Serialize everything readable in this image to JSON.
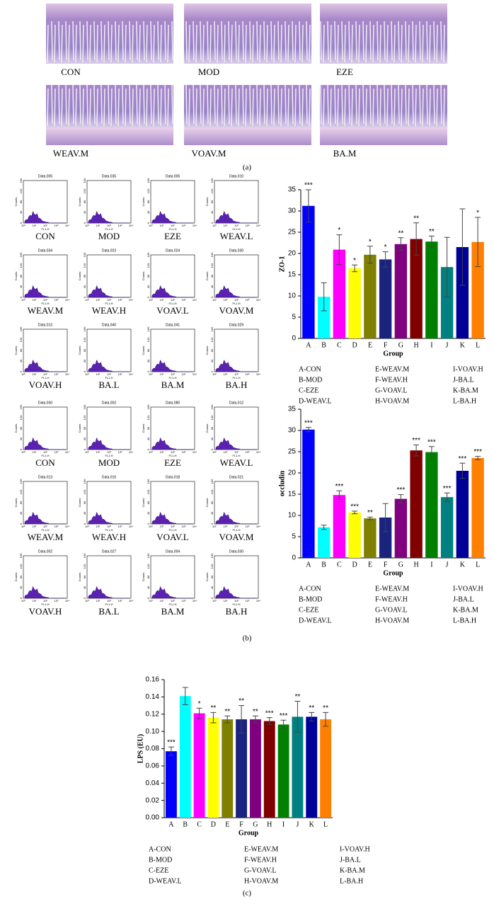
{
  "histology": {
    "labels": [
      "CON",
      "MOD",
      "EZE",
      "WEAV.M",
      "VOAV.M",
      "BA.M"
    ],
    "caption": "(a)"
  },
  "flow": {
    "y_label": "Counts",
    "x_label": "FL1-H",
    "yticks": [
      "0",
      "40",
      "80",
      "120",
      "160"
    ],
    "xticks": [
      "10⁰",
      "10¹",
      "10²",
      "10³",
      "10⁴"
    ],
    "sets": [
      {
        "panels": [
          {
            "id": "Data.005",
            "label": "CON"
          },
          {
            "id": "Data.035",
            "label": "MOD"
          },
          {
            "id": "Data.006",
            "label": "EZE"
          },
          {
            "id": "Data.010",
            "label": "WEAV.L"
          },
          {
            "id": "Data.034",
            "label": "WEAV.M"
          },
          {
            "id": "Data.023",
            "label": "WEAV.H"
          },
          {
            "id": "Data.024",
            "label": "VOAV.L"
          },
          {
            "id": "Data.030",
            "label": "VOAV.M"
          },
          {
            "id": "Data.013",
            "label": "VOAV.H"
          },
          {
            "id": "Data.040",
            "label": "BA.L"
          },
          {
            "id": "Data.041",
            "label": "BA.M"
          },
          {
            "id": "Data.029",
            "label": "BA.H"
          }
        ]
      },
      {
        "panels": [
          {
            "id": "Data.030",
            "label": "CON"
          },
          {
            "id": "Data.002",
            "label": "MOD"
          },
          {
            "id": "Data.080",
            "label": "EZE"
          },
          {
            "id": "Data.012",
            "label": "WEAV.L"
          },
          {
            "id": "Data.013",
            "label": "WEAV.M"
          },
          {
            "id": "Data.010",
            "label": "WEAV.H"
          },
          {
            "id": "Data.018",
            "label": "VOAV.L"
          },
          {
            "id": "Data.021",
            "label": "VOAV.M"
          },
          {
            "id": "Data.002",
            "label": "VOAV.H"
          },
          {
            "id": "Data.027",
            "label": "BA.L"
          },
          {
            "id": "Data.004",
            "label": "BA.M"
          },
          {
            "id": "Data.030",
            "label": "BA.H"
          }
        ]
      }
    ],
    "caption": "(b)"
  },
  "chart_data": [
    {
      "type": "bar",
      "y_label": "ZO-1",
      "x_label": "Group",
      "categories": [
        "A",
        "B",
        "C",
        "D",
        "E",
        "F",
        "G",
        "H",
        "I",
        "J",
        "K",
        "L"
      ],
      "values": [
        31.2,
        9.8,
        20.9,
        16.5,
        19.7,
        18.6,
        22.2,
        23.4,
        22.8,
        16.8,
        21.5,
        22.7
      ],
      "errors": [
        3.8,
        3.3,
        3.5,
        0.8,
        2,
        1.8,
        1.5,
        3.8,
        1.3,
        7,
        9,
        5.8
      ],
      "annotations": [
        "***",
        null,
        "*",
        "*",
        "*",
        "*",
        "**",
        "**",
        "**",
        null,
        null,
        "*"
      ],
      "colors": [
        "#0000ff",
        "#00ffff",
        "#ff00ff",
        "#ffff00",
        "#808000",
        "#1a237e",
        "#800080",
        "#800000",
        "#008000",
        "#008080",
        "#000099",
        "#ff8000"
      ],
      "ylim": [
        0,
        35
      ],
      "yticks": [
        0,
        5,
        10,
        15,
        20,
        25,
        30,
        35
      ],
      "key": [
        "A-CON",
        "B-MOD",
        "C-EZE",
        "D-WEAV.L",
        "E-WEAV.M",
        "F-WEAV.H",
        "G-VOAV.L",
        "H-VOAV.M",
        "I-VOAV.H",
        "J-BA.L",
        "K-BA.M",
        "L-BA.H"
      ]
    },
    {
      "type": "bar",
      "y_label": "occludin",
      "x_label": "Group",
      "categories": [
        "A",
        "B",
        "C",
        "D",
        "E",
        "F",
        "G",
        "H",
        "I",
        "J",
        "K",
        "L"
      ],
      "values": [
        30.2,
        7.2,
        14.8,
        10.7,
        9.3,
        9.5,
        13.9,
        25.3,
        24.9,
        14.3,
        20.5,
        23.5
      ],
      "errors": [
        0.5,
        0.5,
        1,
        0.3,
        0.3,
        3.3,
        1,
        1.3,
        1.3,
        1,
        1.8,
        0.4
      ],
      "annotations": [
        "***",
        null,
        "***",
        "***",
        "**",
        null,
        "***",
        "***",
        "***",
        "***",
        "***",
        "***"
      ],
      "colors": [
        "#0000ff",
        "#00ffff",
        "#ff00ff",
        "#ffff00",
        "#808000",
        "#1a237e",
        "#800080",
        "#800000",
        "#008000",
        "#008080",
        "#000099",
        "#ff8000"
      ],
      "ylim": [
        0,
        35
      ],
      "yticks": [
        0,
        5,
        10,
        15,
        20,
        25,
        30,
        35
      ],
      "key": [
        "A-CON",
        "B-MOD",
        "C-EZE",
        "D-WEAV.L",
        "E-WEAV.M",
        "F-WEAV.H",
        "G-VOAV.L",
        "H-VOAV.M",
        "I-VOAV.H",
        "J-BA.L",
        "K-BA.M",
        "L-BA.H"
      ]
    },
    {
      "type": "bar",
      "y_label": "LPS (EU)",
      "x_label": "Group",
      "categories": [
        "A",
        "B",
        "C",
        "D",
        "E",
        "F",
        "G",
        "H",
        "I",
        "J",
        "K",
        "L"
      ],
      "values": [
        0.077,
        0.141,
        0.121,
        0.116,
        0.114,
        0.114,
        0.114,
        0.112,
        0.108,
        0.117,
        0.117,
        0.114
      ],
      "errors": [
        0.005,
        0.01,
        0.006,
        0.006,
        0.004,
        0.016,
        0.004,
        0.004,
        0.005,
        0.018,
        0.005,
        0.008
      ],
      "annotations": [
        "***",
        null,
        "*",
        "**",
        "**",
        "**",
        "**",
        "***",
        "***",
        "**",
        "**",
        "**"
      ],
      "colors": [
        "#0000ff",
        "#00ffff",
        "#ff00ff",
        "#ffff00",
        "#808000",
        "#1a237e",
        "#800080",
        "#800000",
        "#008000",
        "#008080",
        "#000099",
        "#ff8000"
      ],
      "ylim": [
        0,
        0.16
      ],
      "yticks": [
        {
          "value": 0,
          "label": "0.00"
        },
        0.02,
        0.04,
        0.06,
        0.08,
        {
          "value": 0.1,
          "label": "0.10"
        },
        0.12,
        0.14,
        0.16
      ],
      "key": [
        "A-CON",
        "B-MOD",
        "C-EZE",
        "D-WEAV.L",
        "E-WEAV.M",
        "F-WEAV.H",
        "G-VOAV.L",
        "H-VOAV.M",
        "I-VOAV.H",
        "J-BA.L",
        "K-BA.M",
        "L-BA.H"
      ],
      "caption": "(c)"
    }
  ]
}
